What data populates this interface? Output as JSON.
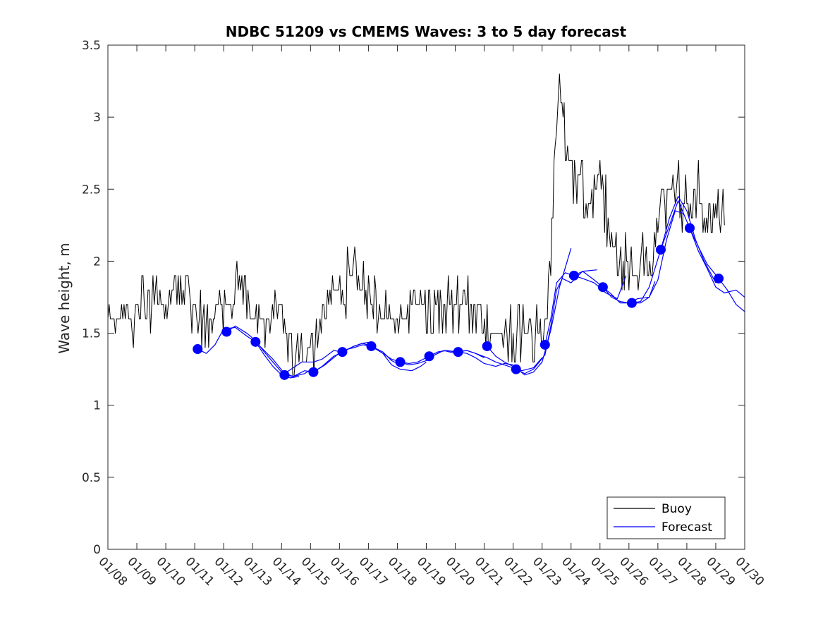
{
  "chart_data": {
    "type": "line",
    "title": "NDBC 51209 vs CMEMS Waves: 3 to 5 day forecast",
    "ylabel": "Wave height, m",
    "xlabel": "",
    "x_unit": "day of January (tick positions)",
    "xlim": [
      8,
      30
    ],
    "ylim": [
      0,
      3.5
    ],
    "xticks": [
      8,
      9,
      10,
      11,
      12,
      13,
      14,
      15,
      16,
      17,
      18,
      19,
      20,
      21,
      22,
      23,
      24,
      25,
      26,
      27,
      28,
      29,
      30
    ],
    "xtick_labels": [
      "01/08",
      "01/09",
      "01/10",
      "01/11",
      "01/12",
      "01/13",
      "01/14",
      "01/15",
      "01/16",
      "01/17",
      "01/18",
      "01/19",
      "01/20",
      "01/21",
      "01/22",
      "01/23",
      "01/24",
      "01/25",
      "01/26",
      "01/27",
      "01/28",
      "01/29",
      "01/30"
    ],
    "yticks": [
      0,
      0.5,
      1,
      1.5,
      2,
      2.5,
      3,
      3.5
    ],
    "ytick_labels": [
      "0",
      "0.5",
      "1",
      "1.5",
      "2",
      "2.5",
      "3",
      "3.5"
    ],
    "legend": {
      "position": "bottom-right",
      "entries": [
        "Buoy",
        "Forecast"
      ]
    },
    "colors": {
      "buoy": "#000000",
      "forecast": "#0000ff"
    },
    "buoy": {
      "name": "Buoy",
      "anchors": [
        [
          8.0,
          1.6
        ],
        [
          8.3,
          1.6
        ],
        [
          8.6,
          1.6
        ],
        [
          9.0,
          1.6
        ],
        [
          9.3,
          1.7
        ],
        [
          9.6,
          1.7
        ],
        [
          10.0,
          1.7
        ],
        [
          10.3,
          1.7
        ],
        [
          10.6,
          1.8
        ],
        [
          10.9,
          1.7
        ],
        [
          11.2,
          1.6
        ],
        [
          11.6,
          1.6
        ],
        [
          11.9,
          1.7
        ],
        [
          12.2,
          1.7
        ],
        [
          12.5,
          1.8
        ],
        [
          12.8,
          1.7
        ],
        [
          13.0,
          1.6
        ],
        [
          13.3,
          1.55
        ],
        [
          13.6,
          1.55
        ],
        [
          13.9,
          1.55
        ],
        [
          14.1,
          1.55
        ],
        [
          14.3,
          1.45
        ],
        [
          14.6,
          1.4
        ],
        [
          14.9,
          1.4
        ],
        [
          15.2,
          1.45
        ],
        [
          15.5,
          1.6
        ],
        [
          15.8,
          1.8
        ],
        [
          16.1,
          1.8
        ],
        [
          16.4,
          1.9
        ],
        [
          16.7,
          1.8
        ],
        [
          17.0,
          1.7
        ],
        [
          17.3,
          1.65
        ],
        [
          17.6,
          1.6
        ],
        [
          18.0,
          1.6
        ],
        [
          18.4,
          1.65
        ],
        [
          18.8,
          1.65
        ],
        [
          19.2,
          1.65
        ],
        [
          19.6,
          1.65
        ],
        [
          20.0,
          1.65
        ],
        [
          20.4,
          1.65
        ],
        [
          20.8,
          1.65
        ],
        [
          21.1,
          1.55
        ],
        [
          21.4,
          1.5
        ],
        [
          21.7,
          1.45
        ],
        [
          22.0,
          1.45
        ],
        [
          22.3,
          1.45
        ],
        [
          22.6,
          1.45
        ],
        [
          22.9,
          1.45
        ],
        [
          23.1,
          1.55
        ],
        [
          23.3,
          2.0
        ],
        [
          23.45,
          2.8
        ],
        [
          23.55,
          3.3
        ],
        [
          23.65,
          3.2
        ],
        [
          23.8,
          2.8
        ],
        [
          24.0,
          2.65
        ],
        [
          24.2,
          2.55
        ],
        [
          24.4,
          2.45
        ],
        [
          24.6,
          2.35
        ],
        [
          24.8,
          2.45
        ],
        [
          25.0,
          2.6
        ],
        [
          25.2,
          2.35
        ],
        [
          25.4,
          2.15
        ],
        [
          25.6,
          2.05
        ],
        [
          25.8,
          1.95
        ],
        [
          26.0,
          1.95
        ],
        [
          26.2,
          1.9
        ],
        [
          26.4,
          1.95
        ],
        [
          26.6,
          2.0
        ],
        [
          26.8,
          2.0
        ],
        [
          27.0,
          2.2
        ],
        [
          27.2,
          2.4
        ],
        [
          27.4,
          2.5
        ],
        [
          27.6,
          2.55
        ],
        [
          27.8,
          2.4
        ],
        [
          28.0,
          2.35
        ],
        [
          28.2,
          2.35
        ],
        [
          28.4,
          2.45
        ],
        [
          28.6,
          2.3
        ],
        [
          28.8,
          2.3
        ],
        [
          29.0,
          2.35
        ],
        [
          29.2,
          2.3
        ],
        [
          29.3,
          2.25
        ]
      ]
    },
    "forecast": {
      "name": "Forecast",
      "segments": [
        [
          [
            11.1,
            1.39
          ],
          [
            11.4,
            1.36
          ],
          [
            11.7,
            1.42
          ],
          [
            12.0,
            1.53
          ],
          [
            12.4,
            1.54
          ],
          [
            12.8,
            1.48
          ],
          [
            13.1,
            1.44
          ],
          [
            13.4,
            1.35
          ],
          [
            13.7,
            1.27
          ],
          [
            14.0,
            1.21
          ],
          [
            14.3,
            1.19
          ],
          [
            14.6,
            1.2
          ]
        ],
        [
          [
            12.1,
            1.51
          ],
          [
            12.4,
            1.55
          ],
          [
            12.8,
            1.5
          ],
          [
            13.1,
            1.45
          ],
          [
            13.4,
            1.37
          ],
          [
            13.7,
            1.3
          ],
          [
            14.0,
            1.23
          ],
          [
            14.4,
            1.2
          ],
          [
            14.8,
            1.22
          ],
          [
            15.1,
            1.26
          ]
        ],
        [
          [
            13.1,
            1.44
          ],
          [
            13.4,
            1.38
          ],
          [
            13.7,
            1.32
          ],
          [
            14.1,
            1.22
          ],
          [
            14.4,
            1.26
          ],
          [
            14.7,
            1.3
          ],
          [
            15.1,
            1.3
          ],
          [
            15.4,
            1.32
          ],
          [
            15.8,
            1.38
          ],
          [
            16.1,
            1.37
          ]
        ],
        [
          [
            14.1,
            1.21
          ],
          [
            14.4,
            1.2
          ],
          [
            14.8,
            1.24
          ],
          [
            15.1,
            1.23
          ],
          [
            15.4,
            1.27
          ],
          [
            15.8,
            1.34
          ],
          [
            16.1,
            1.37
          ],
          [
            16.5,
            1.41
          ],
          [
            16.8,
            1.43
          ],
          [
            17.1,
            1.44
          ]
        ],
        [
          [
            15.1,
            1.23
          ],
          [
            15.5,
            1.28
          ],
          [
            15.8,
            1.33
          ],
          [
            16.1,
            1.38
          ],
          [
            16.5,
            1.4
          ],
          [
            16.8,
            1.42
          ],
          [
            17.1,
            1.41
          ],
          [
            17.5,
            1.37
          ],
          [
            17.8,
            1.31
          ],
          [
            18.1,
            1.28
          ]
        ],
        [
          [
            16.1,
            1.37
          ],
          [
            16.5,
            1.41
          ],
          [
            16.8,
            1.43
          ],
          [
            17.1,
            1.41
          ],
          [
            17.5,
            1.36
          ],
          [
            17.8,
            1.28
          ],
          [
            18.1,
            1.25
          ],
          [
            18.5,
            1.24
          ],
          [
            18.8,
            1.27
          ],
          [
            19.0,
            1.3
          ]
        ],
        [
          [
            17.1,
            1.41
          ],
          [
            17.5,
            1.36
          ],
          [
            17.8,
            1.32
          ],
          [
            18.1,
            1.3
          ],
          [
            18.4,
            1.28
          ],
          [
            18.7,
            1.29
          ],
          [
            19.0,
            1.31
          ],
          [
            19.3,
            1.35
          ],
          [
            19.6,
            1.38
          ],
          [
            20.0,
            1.36
          ]
        ],
        [
          [
            18.1,
            1.3
          ],
          [
            18.4,
            1.29
          ],
          [
            18.7,
            1.3
          ],
          [
            19.1,
            1.34
          ],
          [
            19.4,
            1.37
          ],
          [
            19.7,
            1.38
          ],
          [
            20.0,
            1.37
          ],
          [
            20.4,
            1.38
          ],
          [
            20.7,
            1.36
          ],
          [
            21.0,
            1.33
          ]
        ],
        [
          [
            19.1,
            1.34
          ],
          [
            19.4,
            1.37
          ],
          [
            19.7,
            1.38
          ],
          [
            20.1,
            1.37
          ],
          [
            20.4,
            1.36
          ],
          [
            20.7,
            1.33
          ],
          [
            21.0,
            1.29
          ],
          [
            21.4,
            1.27
          ],
          [
            21.7,
            1.29
          ],
          [
            22.0,
            1.28
          ]
        ],
        [
          [
            20.1,
            1.37
          ],
          [
            20.4,
            1.38
          ],
          [
            20.7,
            1.36
          ],
          [
            21.1,
            1.33
          ],
          [
            21.4,
            1.3
          ],
          [
            21.7,
            1.28
          ],
          [
            22.0,
            1.26
          ],
          [
            22.3,
            1.24
          ],
          [
            22.7,
            1.26
          ],
          [
            23.0,
            1.33
          ]
        ],
        [
          [
            21.1,
            1.41
          ],
          [
            21.4,
            1.34
          ],
          [
            21.7,
            1.3
          ],
          [
            22.1,
            1.26
          ],
          [
            22.4,
            1.21
          ],
          [
            22.7,
            1.23
          ],
          [
            23.0,
            1.3
          ],
          [
            23.3,
            1.52
          ],
          [
            23.6,
            1.82
          ],
          [
            24.0,
            2.09
          ]
        ],
        [
          [
            22.1,
            1.25
          ],
          [
            22.4,
            1.22
          ],
          [
            22.7,
            1.25
          ],
          [
            23.1,
            1.35
          ],
          [
            23.3,
            1.55
          ],
          [
            23.5,
            1.8
          ],
          [
            23.7,
            1.88
          ],
          [
            24.0,
            1.85
          ],
          [
            24.4,
            1.93
          ],
          [
            24.9,
            1.94
          ]
        ],
        [
          [
            23.1,
            1.42
          ],
          [
            23.3,
            1.6
          ],
          [
            23.5,
            1.85
          ],
          [
            23.8,
            1.92
          ],
          [
            24.1,
            1.9
          ],
          [
            24.4,
            1.88
          ],
          [
            24.8,
            1.85
          ],
          [
            25.2,
            1.78
          ],
          [
            25.6,
            1.74
          ],
          [
            25.9,
            1.9
          ]
        ],
        [
          [
            24.1,
            1.9
          ],
          [
            24.4,
            1.93
          ],
          [
            24.8,
            1.87
          ],
          [
            25.1,
            1.82
          ],
          [
            25.4,
            1.75
          ],
          [
            25.7,
            1.72
          ],
          [
            26.0,
            1.71
          ],
          [
            26.3,
            1.74
          ],
          [
            26.7,
            1.75
          ],
          [
            26.9,
            1.86
          ]
        ],
        [
          [
            25.1,
            1.82
          ],
          [
            25.4,
            1.77
          ],
          [
            25.7,
            1.71
          ],
          [
            26.1,
            1.71
          ],
          [
            26.4,
            1.71
          ],
          [
            26.7,
            1.75
          ],
          [
            27.0,
            1.87
          ],
          [
            27.3,
            2.15
          ],
          [
            27.6,
            2.35
          ],
          [
            27.9,
            2.33
          ]
        ],
        [
          [
            26.1,
            1.71
          ],
          [
            26.4,
            1.72
          ],
          [
            26.7,
            1.82
          ],
          [
            27.1,
            2.08
          ],
          [
            27.4,
            2.3
          ],
          [
            27.7,
            2.45
          ],
          [
            28.0,
            2.35
          ],
          [
            28.3,
            2.15
          ],
          [
            28.6,
            2.0
          ],
          [
            29.0,
            1.85
          ]
        ],
        [
          [
            27.1,
            2.08
          ],
          [
            27.4,
            2.25
          ],
          [
            27.7,
            2.42
          ],
          [
            28.1,
            2.23
          ],
          [
            28.4,
            2.07
          ],
          [
            28.7,
            1.95
          ],
          [
            29.0,
            1.82
          ],
          [
            29.3,
            1.78
          ],
          [
            29.7,
            1.8
          ],
          [
            30.0,
            1.75
          ]
        ],
        [
          [
            28.1,
            2.23
          ],
          [
            28.4,
            2.1
          ],
          [
            28.7,
            1.98
          ],
          [
            29.1,
            1.88
          ],
          [
            29.4,
            1.8
          ],
          [
            29.7,
            1.7
          ],
          [
            30.0,
            1.65
          ]
        ]
      ],
      "markers": [
        [
          11.1,
          1.39
        ],
        [
          12.1,
          1.51
        ],
        [
          13.1,
          1.44
        ],
        [
          14.1,
          1.21
        ],
        [
          15.1,
          1.23
        ],
        [
          16.1,
          1.37
        ],
        [
          17.1,
          1.41
        ],
        [
          18.1,
          1.3
        ],
        [
          19.1,
          1.34
        ],
        [
          20.1,
          1.37
        ],
        [
          21.1,
          1.41
        ],
        [
          22.1,
          1.25
        ],
        [
          23.1,
          1.42
        ],
        [
          24.1,
          1.9
        ],
        [
          25.1,
          1.82
        ],
        [
          26.1,
          1.71
        ],
        [
          27.1,
          2.08
        ],
        [
          28.1,
          2.23
        ],
        [
          29.1,
          1.88
        ]
      ]
    }
  }
}
